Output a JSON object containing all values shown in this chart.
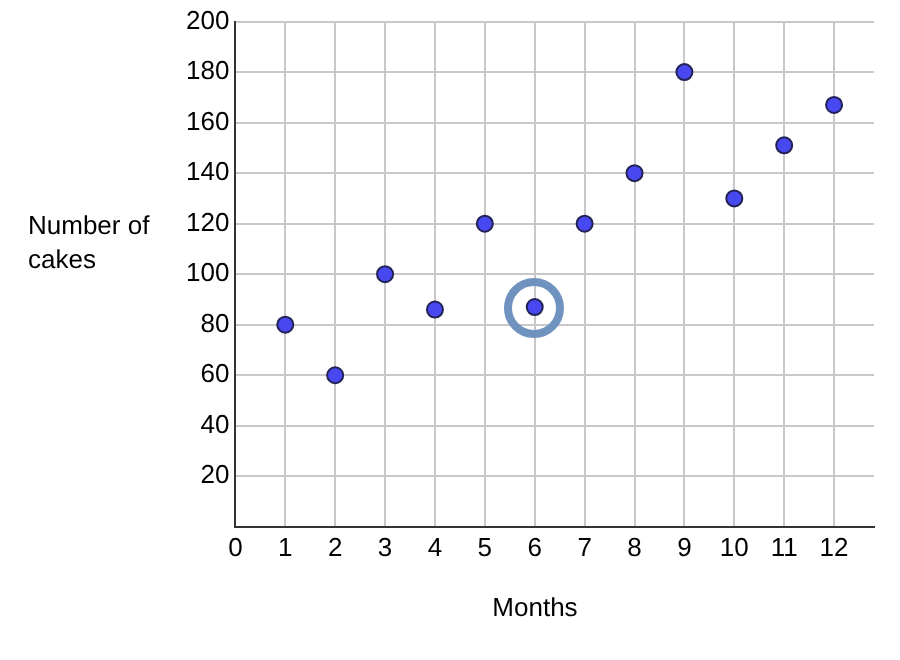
{
  "chart_data": {
    "type": "scatter",
    "xlabel": "Months",
    "ylabel": "Number of cakes",
    "x": [
      1,
      2,
      3,
      4,
      5,
      6,
      7,
      8,
      9,
      10,
      11,
      12
    ],
    "series": [
      {
        "color": "#4848f0",
        "values": [
          80,
          60,
          100,
          86,
          120,
          87,
          120,
          140,
          180,
          130,
          151,
          167
        ]
      }
    ],
    "xlim": [
      0,
      12.8
    ],
    "xticks": [
      0,
      1,
      2,
      3,
      4,
      5,
      6,
      7,
      8,
      9,
      10,
      11,
      12
    ],
    "ylim": [
      0,
      200
    ],
    "yticks": [
      {
        "value": 0,
        "label": null
      },
      20,
      40,
      60,
      80,
      100,
      120,
      140,
      160,
      180,
      200
    ],
    "grid": true,
    "legend": false,
    "marker": "circle"
  }
}
